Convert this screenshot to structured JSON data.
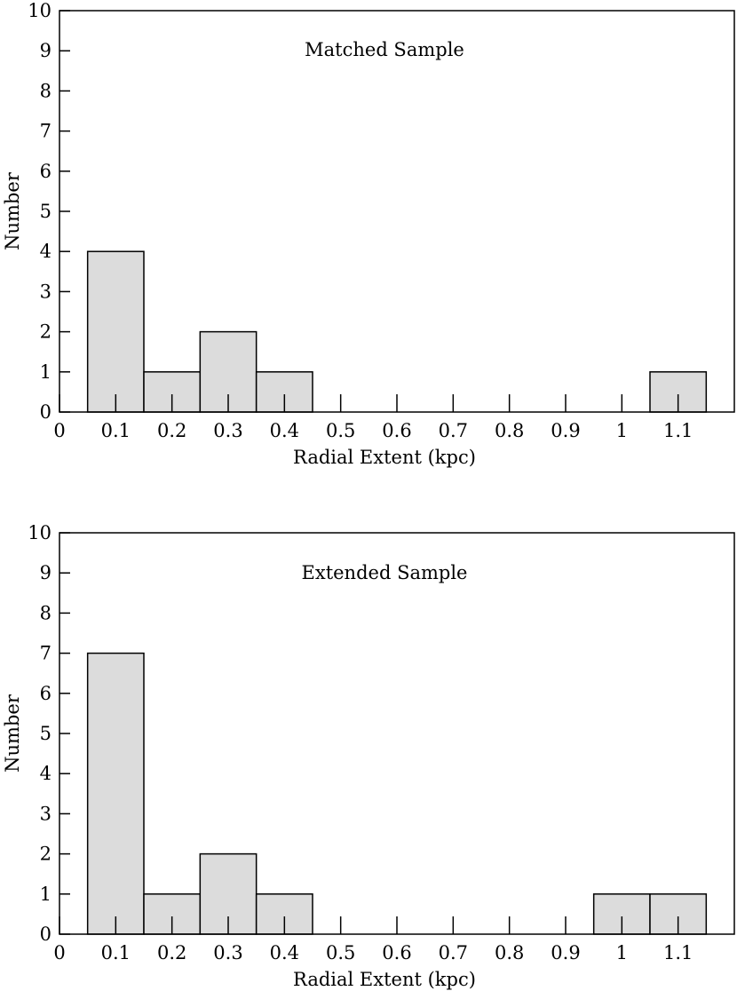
{
  "chart_data": [
    {
      "type": "bar",
      "title": "Matched Sample",
      "xlabel": "Radial Extent (kpc)",
      "ylabel": "Number",
      "xlim": [
        0,
        1.2
      ],
      "ylim": [
        0,
        10
      ],
      "xticks": [
        "0",
        "0.1",
        "0.2",
        "0.3",
        "0.4",
        "0.5",
        "0.6",
        "0.7",
        "0.8",
        "0.9",
        "1",
        "1.1"
      ],
      "yticks": [
        "0",
        "1",
        "2",
        "3",
        "4",
        "5",
        "6",
        "7",
        "8",
        "9",
        "10"
      ],
      "bin_width": 0.1,
      "bins": [
        {
          "center": 0.1,
          "count": 4
        },
        {
          "center": 0.2,
          "count": 1
        },
        {
          "center": 0.3,
          "count": 2
        },
        {
          "center": 0.4,
          "count": 1
        },
        {
          "center": 0.5,
          "count": 0
        },
        {
          "center": 0.6,
          "count": 0
        },
        {
          "center": 0.7,
          "count": 0
        },
        {
          "center": 0.8,
          "count": 0
        },
        {
          "center": 0.9,
          "count": 0
        },
        {
          "center": 1.0,
          "count": 0
        },
        {
          "center": 1.1,
          "count": 1
        }
      ],
      "bar_color": "#dcdcdc"
    },
    {
      "type": "bar",
      "title": "Extended Sample",
      "xlabel": "Radial Extent (kpc)",
      "ylabel": "Number",
      "xlim": [
        0,
        1.2
      ],
      "ylim": [
        0,
        10
      ],
      "xticks": [
        "0",
        "0.1",
        "0.2",
        "0.3",
        "0.4",
        "0.5",
        "0.6",
        "0.7",
        "0.8",
        "0.9",
        "1",
        "1.1"
      ],
      "yticks": [
        "0",
        "1",
        "2",
        "3",
        "4",
        "5",
        "6",
        "7",
        "8",
        "9",
        "10"
      ],
      "bin_width": 0.1,
      "bins": [
        {
          "center": 0.1,
          "count": 7
        },
        {
          "center": 0.2,
          "count": 1
        },
        {
          "center": 0.3,
          "count": 2
        },
        {
          "center": 0.4,
          "count": 1
        },
        {
          "center": 0.5,
          "count": 0
        },
        {
          "center": 0.6,
          "count": 0
        },
        {
          "center": 0.7,
          "count": 0
        },
        {
          "center": 0.8,
          "count": 0
        },
        {
          "center": 0.9,
          "count": 0
        },
        {
          "center": 1.0,
          "count": 1
        },
        {
          "center": 1.1,
          "count": 1
        }
      ],
      "bar_color": "#dcdcdc"
    }
  ]
}
